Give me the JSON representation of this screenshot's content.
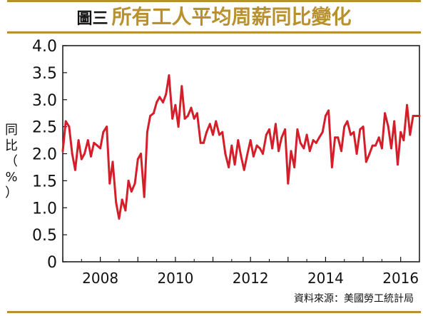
{
  "header": {
    "label": "圖三",
    "title": "所有工人平均周薪同比變化"
  },
  "source": "資料來源：美國勞工統計局",
  "colors": {
    "line": "#d41f2b",
    "rule": "#b8902e",
    "title": "#b8902e",
    "axis": "#111111"
  },
  "chart_data": {
    "type": "line",
    "title": "所有工人平均周薪同比變化",
    "xlabel": "",
    "ylabel": "同比（%）",
    "ylabel_chars": [
      "同",
      "比",
      "（",
      "%",
      "）"
    ],
    "xlim": [
      2007.0,
      2016.5
    ],
    "ylim": [
      0,
      4.0
    ],
    "yticks": [
      0,
      0.5,
      1.0,
      1.5,
      2.0,
      2.5,
      3.0,
      3.5,
      4.0
    ],
    "ytick_labels": [
      "0",
      "0.5",
      "1.0",
      "1.5",
      "2.0",
      "2.5",
      "3.0",
      "3.5",
      "4.0"
    ],
    "xticks": [
      2008,
      2010,
      2012,
      2014,
      2016
    ],
    "xtick_labels": [
      "2008",
      "2010",
      "2012",
      "2014",
      "2016"
    ],
    "grid": false,
    "series": [
      {
        "x": [
          2007.0,
          2007.08,
          2007.17,
          2007.25,
          2007.33,
          2007.42,
          2007.5,
          2007.58,
          2007.67,
          2007.75,
          2007.83,
          2007.92,
          2008.0,
          2008.08,
          2008.17,
          2008.25,
          2008.33,
          2008.42,
          2008.5,
          2008.58,
          2008.67,
          2008.75,
          2008.83,
          2008.92,
          2009.0,
          2009.08,
          2009.17,
          2009.25,
          2009.33,
          2009.42,
          2009.5,
          2009.58,
          2009.67,
          2009.75,
          2009.83,
          2009.92,
          2010.0,
          2010.08,
          2010.17,
          2010.25,
          2010.33,
          2010.42,
          2010.5,
          2010.58,
          2010.67,
          2010.75,
          2010.83,
          2010.92,
          2011.0,
          2011.08,
          2011.17,
          2011.25,
          2011.33,
          2011.42,
          2011.5,
          2011.58,
          2011.67,
          2011.75,
          2011.83,
          2011.92,
          2012.0,
          2012.08,
          2012.17,
          2012.25,
          2012.33,
          2012.42,
          2012.5,
          2012.58,
          2012.67,
          2012.75,
          2012.83,
          2012.92,
          2013.0,
          2013.08,
          2013.17,
          2013.25,
          2013.33,
          2013.42,
          2013.5,
          2013.58,
          2013.67,
          2013.75,
          2013.83,
          2013.92,
          2014.0,
          2014.08,
          2014.17,
          2014.25,
          2014.33,
          2014.42,
          2014.5,
          2014.58,
          2014.67,
          2014.75,
          2014.83,
          2014.92,
          2015.0,
          2015.08,
          2015.17,
          2015.25,
          2015.33,
          2015.42,
          2015.5,
          2015.58,
          2015.67,
          2015.75,
          2015.83,
          2015.92,
          2016.0,
          2016.08,
          2016.17,
          2016.25,
          2016.33,
          2016.42,
          2016.5
        ],
        "values": [
          2.05,
          2.6,
          2.5,
          2.0,
          1.7,
          2.25,
          1.9,
          2.0,
          2.25,
          1.95,
          2.2,
          2.15,
          2.1,
          2.4,
          2.5,
          1.45,
          1.85,
          1.1,
          0.8,
          1.15,
          0.95,
          1.5,
          1.3,
          1.45,
          1.9,
          2.0,
          1.2,
          2.4,
          2.7,
          2.75,
          2.95,
          3.05,
          2.95,
          3.1,
          3.45,
          2.65,
          2.9,
          2.5,
          3.25,
          2.65,
          2.7,
          2.85,
          2.65,
          2.75,
          2.2,
          2.2,
          2.4,
          2.55,
          2.35,
          2.6,
          2.35,
          2.4,
          2.0,
          1.75,
          2.15,
          1.8,
          2.25,
          1.95,
          1.7,
          2.0,
          2.25,
          1.95,
          2.15,
          2.1,
          2.0,
          2.35,
          2.45,
          2.1,
          2.55,
          2.05,
          2.3,
          2.45,
          1.45,
          2.05,
          1.75,
          2.45,
          2.2,
          2.1,
          2.35,
          2.05,
          2.25,
          2.2,
          2.3,
          2.4,
          2.7,
          2.8,
          1.75,
          2.3,
          2.3,
          2.05,
          2.5,
          2.6,
          2.35,
          2.4,
          2.0,
          2.45,
          2.5,
          1.85,
          2.0,
          2.15,
          2.15,
          2.3,
          2.1,
          2.75,
          2.5,
          2.1,
          2.6,
          1.8,
          2.4,
          2.25,
          2.9,
          2.35,
          2.7,
          2.7,
          2.7
        ]
      }
    ]
  }
}
